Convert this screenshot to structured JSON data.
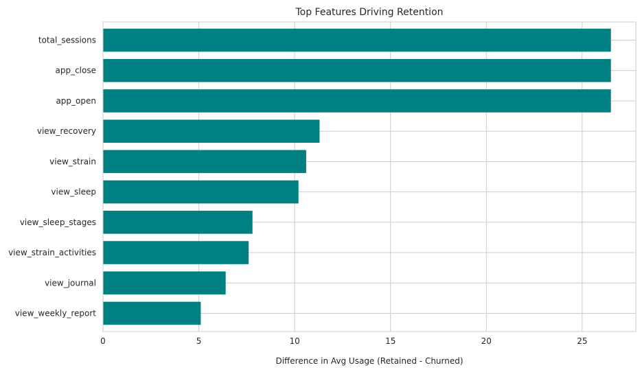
{
  "chart_data": {
    "type": "bar",
    "orientation": "horizontal",
    "title": "Top Features Driving Retention",
    "xlabel": "Difference in Avg Usage (Retained - Churned)",
    "ylabel": "",
    "categories": [
      "total_sessions",
      "app_close",
      "app_open",
      "view_recovery",
      "view_strain",
      "view_sleep",
      "view_sleep_stages",
      "view_strain_activities",
      "view_journal",
      "view_weekly_report"
    ],
    "values": [
      26.5,
      26.5,
      26.5,
      11.3,
      10.6,
      10.2,
      7.8,
      7.6,
      6.4,
      5.1
    ],
    "xlim": [
      0,
      27.8
    ],
    "xticks": [
      0,
      5,
      10,
      15,
      20,
      25
    ],
    "grid": true,
    "bar_color": "#008080",
    "grid_color": "#cccccc"
  }
}
